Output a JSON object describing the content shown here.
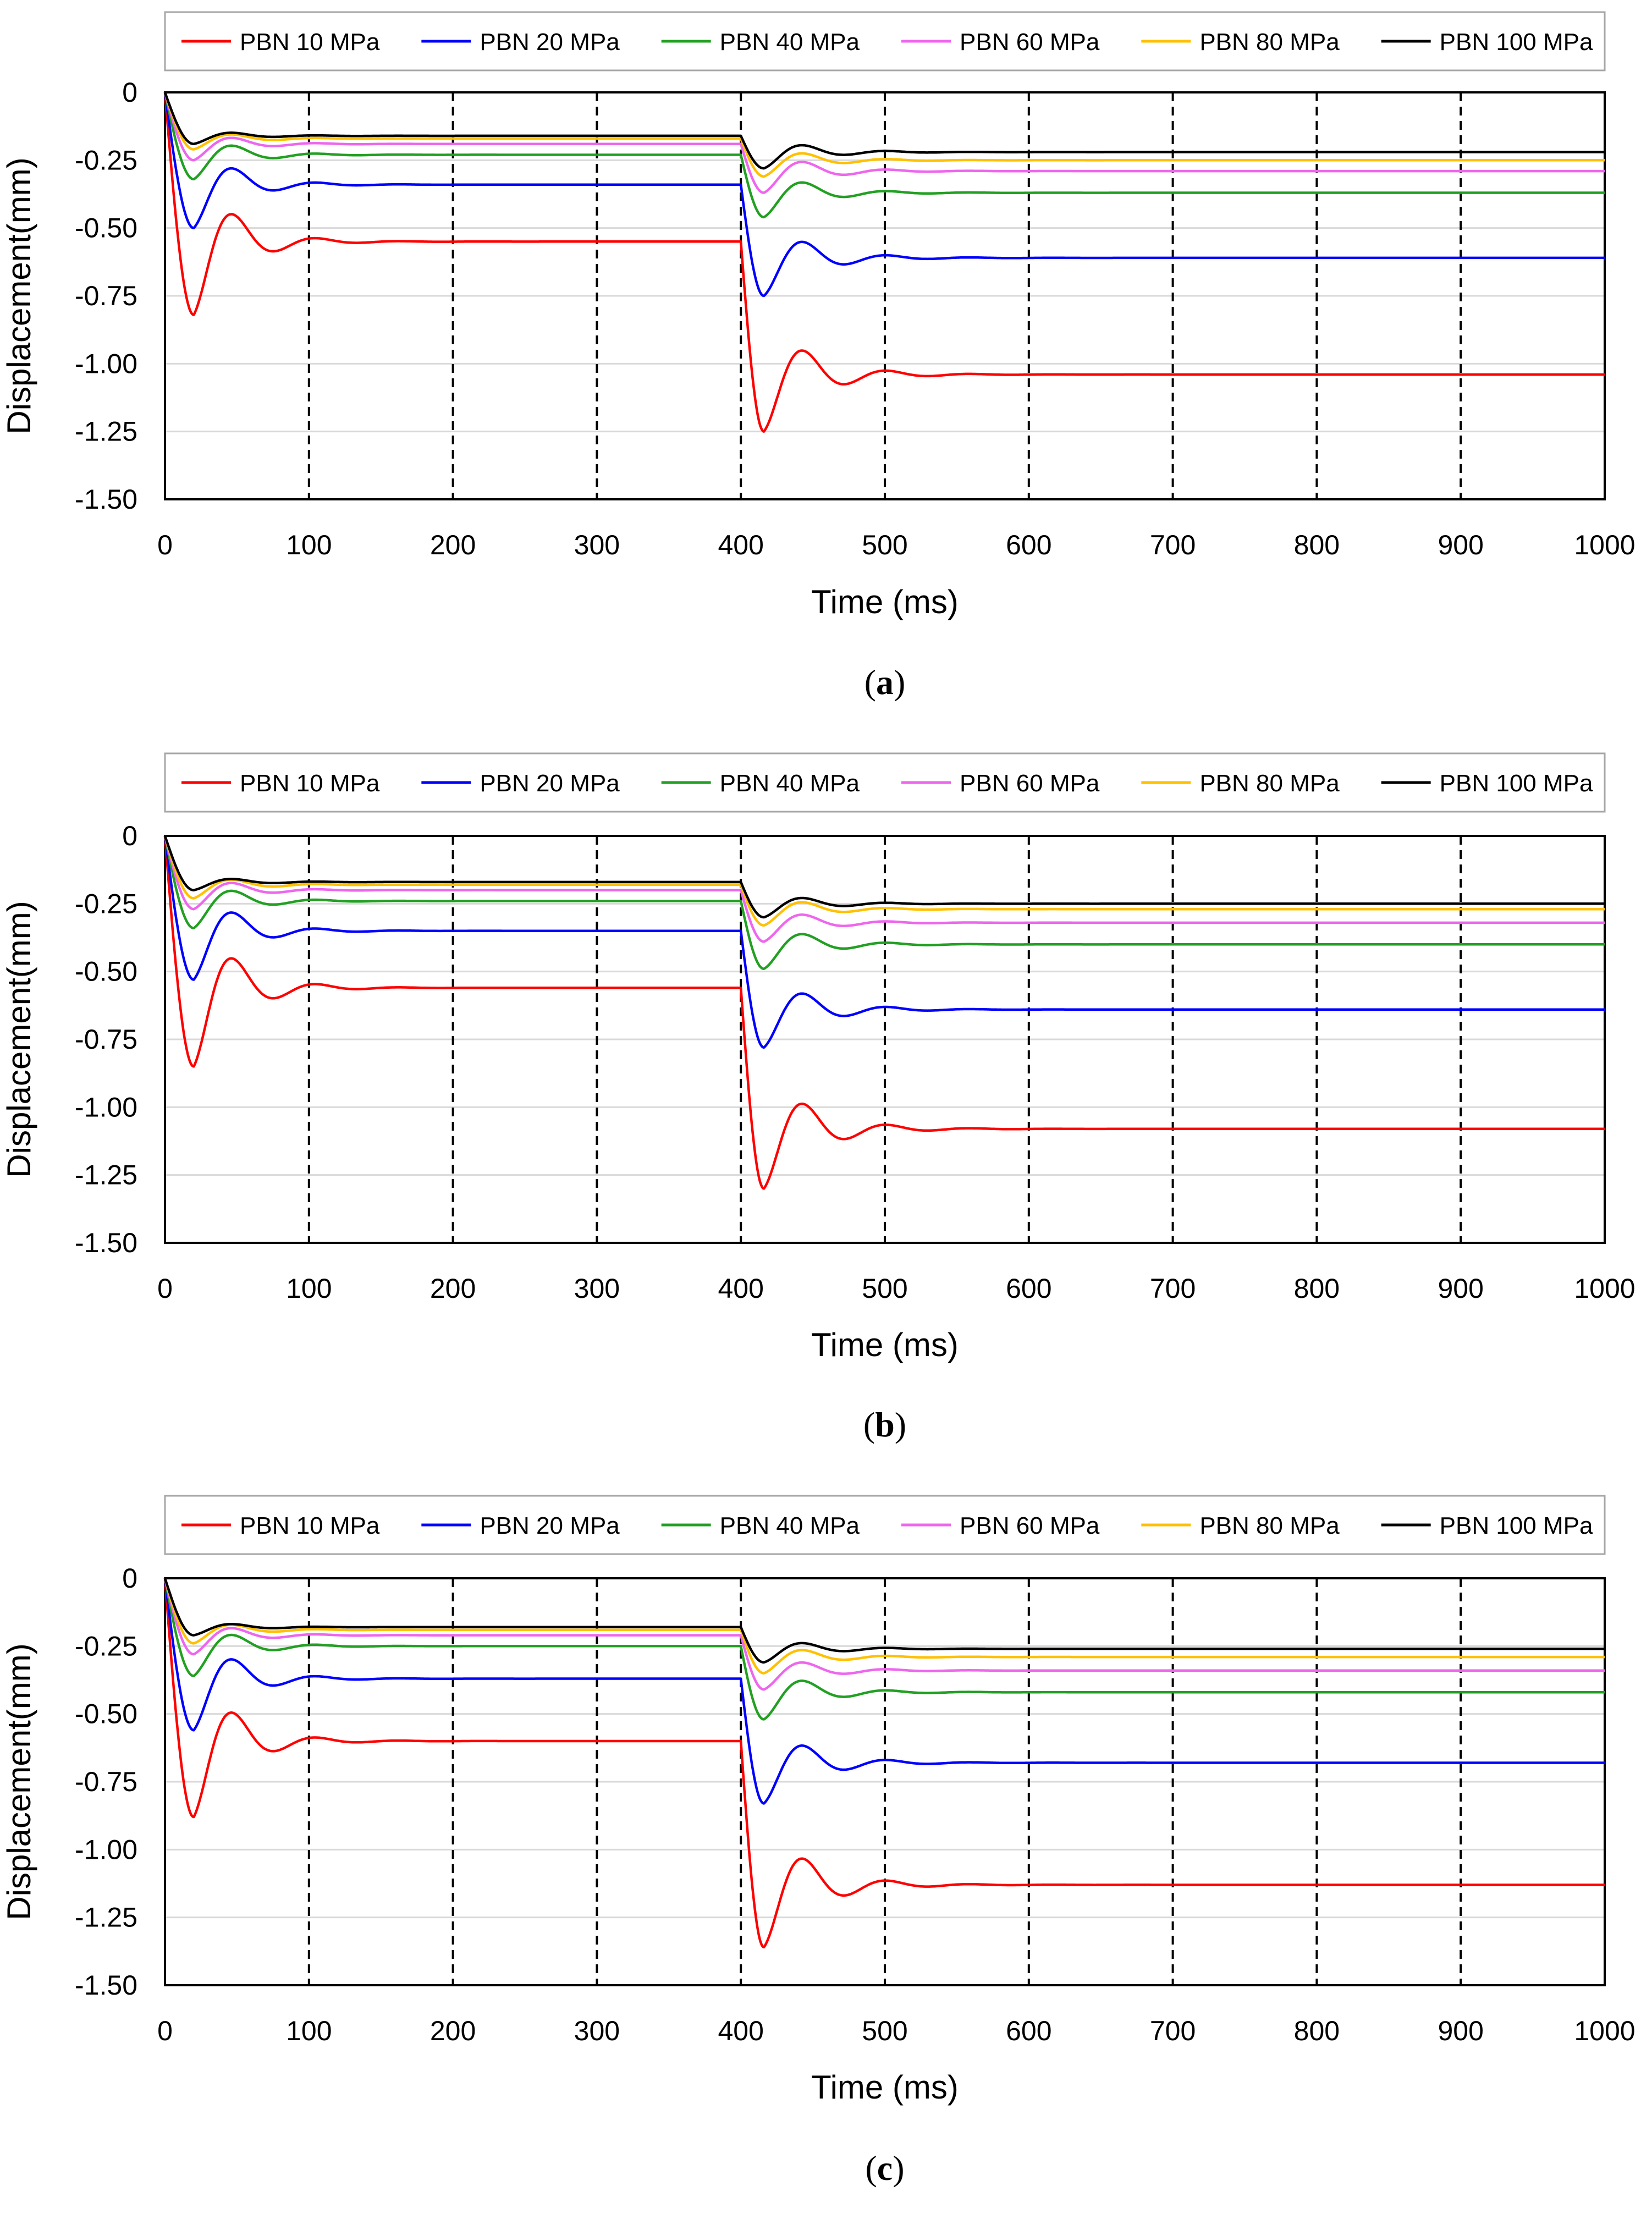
{
  "chart_data": [
    {
      "type": "line",
      "panel": "a",
      "caption_letter": "a",
      "xlabel": "Time (ms)",
      "ylabel": "Displacement(mm)",
      "xlim": [
        0,
        1000
      ],
      "ylim": [
        -1.5,
        0
      ],
      "xticks": [
        "0",
        "100",
        "200",
        "300",
        "400",
        "500",
        "600",
        "700",
        "800",
        "900",
        "1000"
      ],
      "yticks": [
        "0",
        "-0.25",
        "-0.50",
        "-0.75",
        "-1.00",
        "-1.25",
        "-1.50"
      ],
      "vlines": [
        100,
        200,
        300,
        400,
        500,
        600,
        700,
        800,
        900
      ],
      "load_step_time": 400,
      "series": [
        {
          "name": "PBN 10 MPa",
          "color": "#ff0000",
          "peak1": -0.82,
          "plateau1": -0.55,
          "peak2": -1.25,
          "plateau2": -1.04
        },
        {
          "name": "PBN 20 MPa",
          "color": "#0000ff",
          "peak1": -0.5,
          "plateau1": -0.34,
          "peak2": -0.75,
          "plateau2": -0.61
        },
        {
          "name": "PBN 40 MPa",
          "color": "#22a022",
          "peak1": -0.32,
          "plateau1": -0.23,
          "peak2": -0.46,
          "plateau2": -0.37
        },
        {
          "name": "PBN 60 MPa",
          "color": "#ee66ee",
          "peak1": -0.25,
          "plateau1": -0.19,
          "peak2": -0.37,
          "plateau2": -0.29
        },
        {
          "name": "PBN 80 MPa",
          "color": "#ffc000",
          "peak1": -0.21,
          "plateau1": -0.17,
          "peak2": -0.31,
          "plateau2": -0.25
        },
        {
          "name": "PBN 100 MPa",
          "color": "#000000",
          "peak1": -0.19,
          "plateau1": -0.16,
          "peak2": -0.28,
          "plateau2": -0.22
        }
      ]
    },
    {
      "type": "line",
      "panel": "b",
      "caption_letter": "b",
      "xlabel": "Time (ms)",
      "ylabel": "Displacement(mm)",
      "xlim": [
        0,
        1000
      ],
      "ylim": [
        -1.5,
        0
      ],
      "xticks": [
        "0",
        "100",
        "200",
        "300",
        "400",
        "500",
        "600",
        "700",
        "800",
        "900",
        "1000"
      ],
      "yticks": [
        "0",
        "-0.25",
        "-0.50",
        "-0.75",
        "-1.00",
        "-1.25",
        "-1.50"
      ],
      "vlines": [
        100,
        200,
        300,
        400,
        500,
        600,
        700,
        800,
        900
      ],
      "load_step_time": 400,
      "series": [
        {
          "name": "PBN 10 MPa",
          "color": "#ff0000",
          "peak1": -0.85,
          "plateau1": -0.56,
          "peak2": -1.3,
          "plateau2": -1.08
        },
        {
          "name": "PBN 20 MPa",
          "color": "#0000ff",
          "peak1": -0.53,
          "plateau1": -0.35,
          "peak2": -0.78,
          "plateau2": -0.64
        },
        {
          "name": "PBN 40 MPa",
          "color": "#22a022",
          "peak1": -0.34,
          "plateau1": -0.24,
          "peak2": -0.49,
          "plateau2": -0.4
        },
        {
          "name": "PBN 60 MPa",
          "color": "#ee66ee",
          "peak1": -0.27,
          "plateau1": -0.2,
          "peak2": -0.39,
          "plateau2": -0.32
        },
        {
          "name": "PBN 80 MPa",
          "color": "#ffc000",
          "peak1": -0.23,
          "plateau1": -0.18,
          "peak2": -0.33,
          "plateau2": -0.27
        },
        {
          "name": "PBN 100 MPa",
          "color": "#000000",
          "peak1": -0.2,
          "plateau1": -0.17,
          "peak2": -0.3,
          "plateau2": -0.25
        }
      ]
    },
    {
      "type": "line",
      "panel": "c",
      "caption_letter": "c",
      "xlabel": "Time (ms)",
      "ylabel": "Displacement(mm)",
      "xlim": [
        0,
        1000
      ],
      "ylim": [
        -1.5,
        0
      ],
      "xticks": [
        "0",
        "100",
        "200",
        "300",
        "400",
        "500",
        "600",
        "700",
        "800",
        "900",
        "1000"
      ],
      "yticks": [
        "0",
        "-0.25",
        "-0.50",
        "-0.75",
        "-1.00",
        "-1.25",
        "-1.50"
      ],
      "vlines": [
        100,
        200,
        300,
        400,
        500,
        600,
        700,
        800,
        900
      ],
      "load_step_time": 400,
      "series": [
        {
          "name": "PBN 10 MPa",
          "color": "#ff0000",
          "peak1": -0.88,
          "plateau1": -0.6,
          "peak2": -1.36,
          "plateau2": -1.13
        },
        {
          "name": "PBN 20 MPa",
          "color": "#0000ff",
          "peak1": -0.56,
          "plateau1": -0.37,
          "peak2": -0.83,
          "plateau2": -0.68
        },
        {
          "name": "PBN 40 MPa",
          "color": "#22a022",
          "peak1": -0.36,
          "plateau1": -0.25,
          "peak2": -0.52,
          "plateau2": -0.42
        },
        {
          "name": "PBN 60 MPa",
          "color": "#ee66ee",
          "peak1": -0.28,
          "plateau1": -0.21,
          "peak2": -0.41,
          "plateau2": -0.34
        },
        {
          "name": "PBN 80 MPa",
          "color": "#ffc000",
          "peak1": -0.24,
          "plateau1": -0.19,
          "peak2": -0.35,
          "plateau2": -0.29
        },
        {
          "name": "PBN 100 MPa",
          "color": "#000000",
          "peak1": -0.21,
          "plateau1": -0.18,
          "peak2": -0.31,
          "plateau2": -0.26
        }
      ]
    }
  ]
}
